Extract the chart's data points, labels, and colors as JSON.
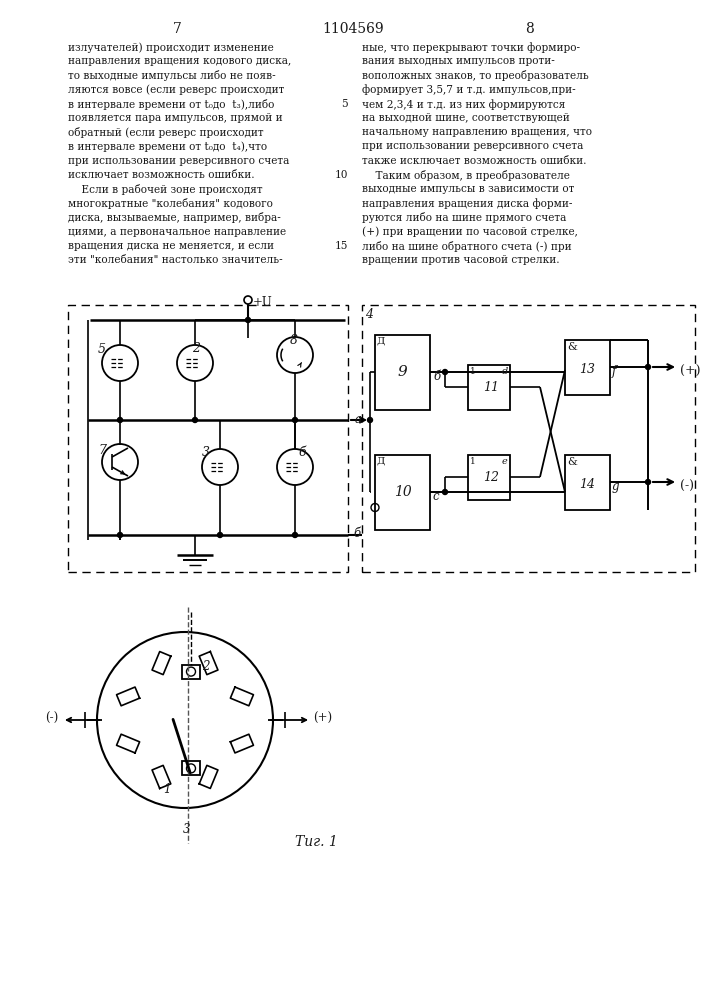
{
  "page_number_left": "7",
  "patent_number": "1104569",
  "page_number_right": "8",
  "text_left_lines": [
    "излучателей) происходит изменение",
    "направления вращения кодового диска,",
    "то выходные импульсы либо не появ-",
    "ляются вовсе (если реверс происходит",
    "в интервале времени от t₀до  t₃),либо",
    "появляется пара импульсов, прямой и",
    "обратный (если реверс происходит",
    "в интервале времени от t₀до  t₄),что",
    "при использовании реверсивного счета",
    "исключает возможность ошибки.",
    "    Если в рабочей зоне происходят",
    "многократные \"колебания\" кодового",
    "диска, вызываемые, например, вибра-",
    "циями, а первоначальное направление",
    "вращения диска не меняется, и если",
    "эти \"колебания\" настолько значитель-"
  ],
  "text_right_lines": [
    "ные, что перекрывают точки формиро-",
    "вания выходных импульсов проти-",
    "воположных знаков, то преобразователь",
    "формирует 3,5,7 и т.д. импульсов,при-",
    "чем 2,3,4 и т.д. из них формируются",
    "на выходной шине, соответствующей",
    "начальному направлению вращения, что",
    "при использовании реверсивного счета",
    "также исключает возможность ошибки.",
    "    Таким образом, в преобразователе",
    "выходные импульсы в зависимости от",
    "направления вращения диска форми-",
    "руются либо на шине прямого счета",
    "(+) при вращении по часовой стрелке,",
    "либо на шине обратного счета (-) при",
    "вращении против часовой стрелки."
  ],
  "fig_caption": "Τиг.1",
  "bg_color": "#ffffff",
  "text_color": "#1a1a1a"
}
